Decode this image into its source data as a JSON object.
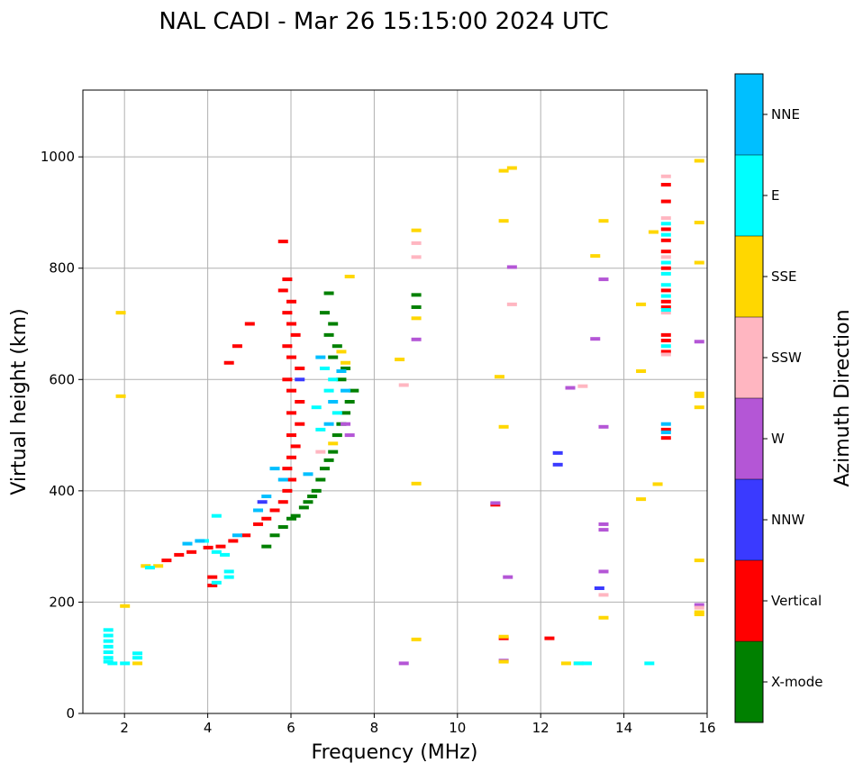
{
  "chart_data": {
    "type": "scatter",
    "title": "NAL CADI - Mar 26 15:15:00 2024 UTC",
    "xlabel": "Frequency (MHz)",
    "ylabel": "Virtual height (km)",
    "xlim": [
      1,
      16
    ],
    "ylim": [
      0,
      1120
    ],
    "xticks": [
      2,
      4,
      6,
      8,
      10,
      12,
      14,
      16
    ],
    "xtick_labels": [
      "2",
      "4",
      "6",
      "8",
      "10",
      "12",
      "14",
      "16"
    ],
    "yticks": [
      0,
      200,
      400,
      600,
      800,
      1000
    ],
    "ytick_labels": [
      "0",
      "200",
      "400",
      "600",
      "800",
      "1000"
    ],
    "grid": true,
    "colorbar": {
      "label": "Azimuth Direction",
      "categories": [
        "X-mode",
        "Vertical",
        "NNW",
        "W",
        "SSW",
        "SSE",
        "E",
        "NNE"
      ],
      "colors": [
        "#008000",
        "#ff0000",
        "#3a3aff",
        "#b456d6",
        "#ffb6c1",
        "#ffd700",
        "#00ffff",
        "#00bfff"
      ]
    },
    "series": [
      {
        "name": "X-mode",
        "points": [
          [
            5.4,
            300
          ],
          [
            5.6,
            320
          ],
          [
            5.8,
            335
          ],
          [
            6.0,
            350
          ],
          [
            6.1,
            355
          ],
          [
            6.3,
            370
          ],
          [
            6.4,
            380
          ],
          [
            6.5,
            390
          ],
          [
            6.6,
            400
          ],
          [
            6.7,
            420
          ],
          [
            6.8,
            440
          ],
          [
            6.9,
            455
          ],
          [
            7.0,
            470
          ],
          [
            7.1,
            500
          ],
          [
            7.2,
            520
          ],
          [
            7.3,
            540
          ],
          [
            7.4,
            560
          ],
          [
            7.5,
            580
          ],
          [
            7.2,
            600
          ],
          [
            7.3,
            620
          ],
          [
            7.0,
            640
          ],
          [
            7.1,
            660
          ],
          [
            6.9,
            680
          ],
          [
            7.0,
            700
          ],
          [
            6.8,
            720
          ],
          [
            6.9,
            755
          ],
          [
            9.0,
            752
          ],
          [
            9.0,
            730
          ]
        ]
      },
      {
        "name": "Vertical",
        "points": [
          [
            3.0,
            275
          ],
          [
            3.3,
            285
          ],
          [
            3.6,
            290
          ],
          [
            4.0,
            298
          ],
          [
            4.3,
            300
          ],
          [
            4.6,
            310
          ],
          [
            4.9,
            320
          ],
          [
            5.2,
            340
          ],
          [
            5.4,
            350
          ],
          [
            5.6,
            365
          ],
          [
            5.8,
            380
          ],
          [
            5.9,
            400
          ],
          [
            6.0,
            420
          ],
          [
            5.9,
            440
          ],
          [
            6.0,
            460
          ],
          [
            6.1,
            480
          ],
          [
            6.0,
            500
          ],
          [
            6.2,
            520
          ],
          [
            6.0,
            540
          ],
          [
            6.2,
            560
          ],
          [
            6.0,
            580
          ],
          [
            5.9,
            600
          ],
          [
            6.2,
            620
          ],
          [
            6.0,
            640
          ],
          [
            5.9,
            660
          ],
          [
            6.1,
            680
          ],
          [
            6.0,
            700
          ],
          [
            5.9,
            720
          ],
          [
            6.0,
            740
          ],
          [
            5.8,
            760
          ],
          [
            5.9,
            780
          ],
          [
            5.8,
            848
          ],
          [
            5.0,
            700
          ],
          [
            4.7,
            660
          ],
          [
            4.5,
            630
          ],
          [
            4.1,
            245
          ],
          [
            4.1,
            230
          ],
          [
            15.0,
            950
          ],
          [
            15.0,
            920
          ],
          [
            15.0,
            870
          ],
          [
            15.0,
            850
          ],
          [
            15.0,
            830
          ],
          [
            15.0,
            800
          ],
          [
            15.0,
            760
          ],
          [
            15.0,
            740
          ],
          [
            15.0,
            730
          ],
          [
            15.0,
            680
          ],
          [
            15.0,
            670
          ],
          [
            15.0,
            650
          ],
          [
            15.0,
            510
          ],
          [
            15.0,
            495
          ],
          [
            12.2,
            135
          ],
          [
            11.1,
            135
          ],
          [
            10.9,
            375
          ]
        ]
      },
      {
        "name": "NNW",
        "points": [
          [
            12.4,
            468
          ],
          [
            12.4,
            447
          ],
          [
            13.4,
            225
          ],
          [
            5.3,
            380
          ],
          [
            6.2,
            600
          ]
        ]
      },
      {
        "name": "W",
        "points": [
          [
            13.3,
            673
          ],
          [
            13.5,
            780
          ],
          [
            13.5,
            515
          ],
          [
            13.5,
            340
          ],
          [
            13.5,
            330
          ],
          [
            13.5,
            255
          ],
          [
            12.7,
            585
          ],
          [
            11.3,
            802
          ],
          [
            11.2,
            245
          ],
          [
            10.9,
            378
          ],
          [
            9.0,
            672
          ],
          [
            8.7,
            90
          ],
          [
            15.8,
            668
          ],
          [
            15.8,
            195
          ],
          [
            7.4,
            500
          ],
          [
            7.3,
            520
          ],
          [
            11.1,
            95
          ]
        ]
      },
      {
        "name": "SSW",
        "points": [
          [
            9.0,
            845
          ],
          [
            9.0,
            820
          ],
          [
            8.7,
            590
          ],
          [
            11.3,
            735
          ],
          [
            13.0,
            588
          ],
          [
            13.5,
            213
          ],
          [
            15.8,
            190
          ],
          [
            15.0,
            965
          ],
          [
            15.0,
            890
          ],
          [
            15.0,
            820
          ],
          [
            15.0,
            720
          ],
          [
            15.0,
            645
          ],
          [
            6.7,
            470
          ]
        ]
      },
      {
        "name": "SSE",
        "points": [
          [
            9.0,
            868
          ],
          [
            9.0,
            710
          ],
          [
            9.0,
            133
          ],
          [
            8.6,
            636
          ],
          [
            11.1,
            975
          ],
          [
            11.3,
            980
          ],
          [
            11.1,
            885
          ],
          [
            11.0,
            605
          ],
          [
            11.1,
            515
          ],
          [
            11.1,
            138
          ],
          [
            11.1,
            93
          ],
          [
            13.3,
            822
          ],
          [
            13.5,
            885
          ],
          [
            13.5,
            172
          ],
          [
            14.4,
            735
          ],
          [
            14.4,
            615
          ],
          [
            14.4,
            385
          ],
          [
            14.7,
            865
          ],
          [
            14.8,
            412
          ],
          [
            15.8,
            993
          ],
          [
            15.8,
            882
          ],
          [
            15.8,
            810
          ],
          [
            15.8,
            575
          ],
          [
            15.8,
            570
          ],
          [
            15.8,
            550
          ],
          [
            15.8,
            275
          ],
          [
            15.8,
            182
          ],
          [
            15.8,
            178
          ],
          [
            12.6,
            90
          ],
          [
            12.9,
            90
          ],
          [
            7.2,
            650
          ],
          [
            7.3,
            630
          ],
          [
            7.4,
            785
          ],
          [
            7.0,
            485
          ],
          [
            1.9,
            720
          ],
          [
            1.9,
            570
          ],
          [
            2.0,
            193
          ],
          [
            2.5,
            265
          ],
          [
            2.8,
            265
          ],
          [
            2.3,
            90
          ],
          [
            9.0,
            413
          ]
        ]
      },
      {
        "name": "E",
        "points": [
          [
            1.6,
            150
          ],
          [
            1.6,
            140
          ],
          [
            1.6,
            130
          ],
          [
            1.6,
            120
          ],
          [
            1.6,
            110
          ],
          [
            1.6,
            100
          ],
          [
            1.6,
            93
          ],
          [
            1.7,
            90
          ],
          [
            2.0,
            90
          ],
          [
            2.3,
            108
          ],
          [
            2.3,
            100
          ],
          [
            2.6,
            262
          ],
          [
            3.9,
            310
          ],
          [
            4.2,
            355
          ],
          [
            4.2,
            290
          ],
          [
            4.4,
            285
          ],
          [
            4.5,
            255
          ],
          [
            4.5,
            245
          ],
          [
            4.2,
            235
          ],
          [
            6.8,
            620
          ],
          [
            6.9,
            580
          ],
          [
            6.6,
            550
          ],
          [
            6.7,
            510
          ],
          [
            7.0,
            600
          ],
          [
            7.1,
            540
          ],
          [
            14.6,
            90
          ],
          [
            12.9,
            90
          ],
          [
            13.1,
            90
          ],
          [
            15.0,
            880
          ],
          [
            15.0,
            860
          ],
          [
            15.0,
            810
          ],
          [
            15.0,
            790
          ],
          [
            15.0,
            770
          ],
          [
            15.0,
            750
          ],
          [
            15.0,
            725
          ],
          [
            15.0,
            660
          ]
        ]
      },
      {
        "name": "NNE",
        "points": [
          [
            3.5,
            305
          ],
          [
            3.8,
            310
          ],
          [
            4.7,
            320
          ],
          [
            5.2,
            365
          ],
          [
            5.4,
            390
          ],
          [
            5.6,
            440
          ],
          [
            5.8,
            420
          ],
          [
            6.4,
            430
          ],
          [
            6.9,
            520
          ],
          [
            7.0,
            560
          ],
          [
            7.3,
            580
          ],
          [
            7.2,
            615
          ],
          [
            6.7,
            640
          ],
          [
            15.0,
            520
          ],
          [
            15.0,
            505
          ]
        ]
      }
    ]
  }
}
